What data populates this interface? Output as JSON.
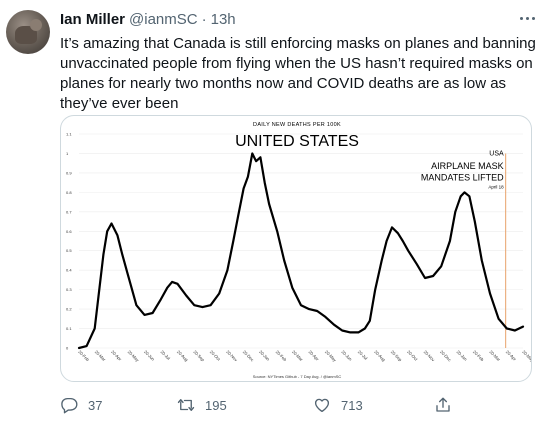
{
  "tweet": {
    "author_name": "Ian Miller",
    "handle": "@ianmSC",
    "separator": "·",
    "time": "13h",
    "text": "It’s amazing that Canada is still enforcing masks on planes and banning unvaccinated people from flying when the US hasn’t required masks on planes for nearly two months now and COVID deaths are as low as they’ve ever been"
  },
  "actions": {
    "replies": "37",
    "retweets": "195",
    "likes": "713"
  },
  "icons": [
    "more-icon",
    "reply-icon",
    "retweet-icon",
    "like-icon",
    "share-icon"
  ],
  "chart_data": {
    "type": "line",
    "kicker": "DAILY NEW DEATHS PER 100K",
    "title": "UNITED STATES",
    "source": "Source: NYTimes Github - 7 Day Avg. / @ianmSC",
    "line_color": "#000000",
    "annotation": {
      "lines": [
        "USA",
        "AIRPLANE MASK",
        "MANDATES LIFTED"
      ],
      "date": "April 18",
      "x": "2022-04-18",
      "color": "#e8a36a"
    },
    "ylim": [
      0,
      1.1
    ],
    "y_ticks": [
      "0",
      "0.1",
      "0.2",
      "0.3",
      "0.4",
      "0.5",
      "0.6",
      "0.7",
      "0.8",
      "0.9",
      "1",
      "1.1"
    ],
    "x_ticks": [
      "20-Feb",
      "20-Mar",
      "20-Apr",
      "20-May",
      "20-Jun",
      "20-Jul",
      "20-Aug",
      "20-Sep",
      "20-Oct",
      "20-Nov",
      "20-Dec",
      "20-Jan",
      "20-Feb",
      "20-Mar",
      "20-Apr",
      "20-May",
      "20-Jun",
      "20-Jul",
      "20-Aug",
      "20-Sep",
      "20-Oct",
      "20-Nov",
      "20-Dec",
      "20-Jan",
      "20-Feb",
      "20-Mar",
      "20-Apr",
      "20-May"
    ],
    "series": [
      {
        "x": [
          "2020-02-20",
          "2020-03-05",
          "2020-03-20",
          "2020-04-05",
          "2020-04-12",
          "2020-04-20",
          "2020-05-01",
          "2020-05-10",
          "2020-05-20",
          "2020-06-05",
          "2020-06-20",
          "2020-07-05",
          "2020-07-20",
          "2020-08-01",
          "2020-08-10",
          "2020-08-20",
          "2020-09-05",
          "2020-09-20",
          "2020-10-05",
          "2020-10-20",
          "2020-11-05",
          "2020-11-20",
          "2020-12-01",
          "2020-12-10",
          "2020-12-20",
          "2020-12-28",
          "2021-01-05",
          "2021-01-12",
          "2021-01-20",
          "2021-01-28",
          "2021-02-05",
          "2021-02-20",
          "2021-03-05",
          "2021-03-20",
          "2021-04-05",
          "2021-04-20",
          "2021-05-05",
          "2021-05-20",
          "2021-06-05",
          "2021-06-20",
          "2021-07-05",
          "2021-07-20",
          "2021-08-01",
          "2021-08-10",
          "2021-08-20",
          "2021-09-01",
          "2021-09-10",
          "2021-09-20",
          "2021-10-01",
          "2021-10-10",
          "2021-10-20",
          "2021-11-05",
          "2021-11-20",
          "2021-12-05",
          "2021-12-20",
          "2022-01-05",
          "2022-01-15",
          "2022-01-25",
          "2022-02-01",
          "2022-02-10",
          "2022-02-20",
          "2022-03-05",
          "2022-03-20",
          "2022-04-05",
          "2022-04-20",
          "2022-05-05",
          "2022-05-20"
        ],
        "y": [
          0.0,
          0.01,
          0.1,
          0.48,
          0.6,
          0.64,
          0.58,
          0.48,
          0.38,
          0.22,
          0.17,
          0.18,
          0.25,
          0.31,
          0.34,
          0.33,
          0.27,
          0.22,
          0.21,
          0.22,
          0.28,
          0.4,
          0.55,
          0.68,
          0.82,
          0.88,
          1.0,
          0.96,
          0.98,
          0.85,
          0.74,
          0.6,
          0.45,
          0.31,
          0.22,
          0.2,
          0.19,
          0.16,
          0.12,
          0.09,
          0.08,
          0.08,
          0.1,
          0.14,
          0.3,
          0.45,
          0.55,
          0.62,
          0.59,
          0.55,
          0.5,
          0.43,
          0.36,
          0.37,
          0.42,
          0.55,
          0.7,
          0.78,
          0.8,
          0.78,
          0.65,
          0.45,
          0.28,
          0.15,
          0.1,
          0.09,
          0.11
        ]
      }
    ]
  }
}
